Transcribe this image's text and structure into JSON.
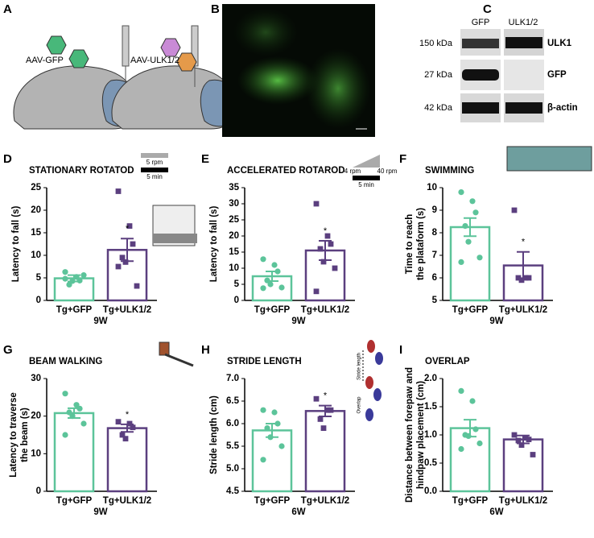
{
  "panel_a": {
    "label": "A",
    "vectors": [
      "AAV-GFP",
      "AAV-ULK1/2"
    ]
  },
  "panel_b": {
    "label": "B"
  },
  "panel_c": {
    "label": "C",
    "lanes": [
      "GFP",
      "ULK1/2"
    ],
    "rows": [
      {
        "weight": "150 kDa",
        "protein": "ULK1"
      },
      {
        "weight": "27 kDa",
        "protein": "GFP"
      },
      {
        "weight": "42 kDa",
        "protein": "β-actin"
      }
    ]
  },
  "chart_data": [
    {
      "type": "bar",
      "label": "D",
      "title": "STATIONARY ROTATOD",
      "inset_labels": [
        "5 rpm",
        "5 min"
      ],
      "categories": [
        "Tg+GFP",
        "Tg+ULK1/2"
      ],
      "colors": [
        "#5cc49a",
        "#5b3f7f"
      ],
      "values": [
        4.9,
        11.2
      ],
      "errors": [
        0.7,
        2.5
      ],
      "points": [
        [
          6.3,
          5.2,
          4.4,
          3.5,
          4.3,
          5.6,
          4.8
        ],
        [
          24.2,
          16.5,
          12.5,
          9.5,
          8.5,
          3.2,
          7.5
        ]
      ],
      "annotation": "*",
      "ylabel": [
        "Latency to fall (s)"
      ],
      "xlabel": "9W",
      "ylim": [
        0,
        25
      ],
      "yticks": [
        0,
        5,
        10,
        15,
        20,
        25
      ]
    },
    {
      "type": "bar",
      "label": "E",
      "title": "ACCELERATED ROTAROD",
      "inset_labels": [
        "4 rpm",
        "40 rpm",
        "5 min"
      ],
      "categories": [
        "Tg+GFP",
        "Tg+ULK1/2"
      ],
      "colors": [
        "#5cc49a",
        "#5b3f7f"
      ],
      "values": [
        7.5,
        15.5
      ],
      "errors": [
        1.5,
        3.0
      ],
      "points": [
        [
          12.8,
          11,
          9,
          6.2,
          5,
          4,
          3.8
        ],
        [
          30,
          20,
          17.5,
          16,
          12,
          10,
          2.8
        ]
      ],
      "annotation": "*",
      "ylabel": [
        "Latency to fall (s)"
      ],
      "xlabel": "9W",
      "ylim": [
        0,
        35
      ],
      "yticks": [
        0,
        5,
        10,
        15,
        20,
        25,
        30,
        35
      ]
    },
    {
      "type": "bar",
      "label": "F",
      "title": "SWIMMING",
      "categories": [
        "Tg+GFP",
        "Tg+ULK1/2"
      ],
      "colors": [
        "#5cc49a",
        "#5b3f7f"
      ],
      "values": [
        8.25,
        6.55
      ],
      "errors": [
        0.4,
        0.6
      ],
      "points": [
        [
          9.8,
          9.4,
          8.9,
          8.3,
          7.6,
          6.9,
          6.7
        ],
        [
          9.0,
          6.0,
          6.0,
          6.0,
          5.9
        ]
      ],
      "annotation": "*",
      "ylabel": [
        "Time to reach",
        "the plataform (s)"
      ],
      "xlabel": "9W",
      "ylim": [
        5,
        10
      ],
      "yticks": [
        5,
        6,
        7,
        8,
        9,
        10
      ]
    },
    {
      "type": "bar",
      "label": "G",
      "title": "BEAM WALKING",
      "categories": [
        "Tg+GFP",
        "Tg+ULK1/2"
      ],
      "colors": [
        "#5cc49a",
        "#5b3f7f"
      ],
      "values": [
        20.8,
        16.8
      ],
      "errors": [
        1.3,
        1.0
      ],
      "points": [
        [
          26,
          23,
          22,
          21,
          20,
          18,
          15
        ],
        [
          18.5,
          18,
          17,
          15,
          14
        ]
      ],
      "annotation": "*",
      "ylabel": [
        "Latency to traverse",
        "the beam (s)"
      ],
      "xlabel": "9W",
      "ylim": [
        0,
        30
      ],
      "yticks": [
        0,
        10,
        20,
        30
      ]
    },
    {
      "type": "bar",
      "label": "H",
      "title": "STRIDE LENGTH",
      "inset_labels": [
        "Stride length",
        "Overlap"
      ],
      "categories": [
        "Tg+GFP",
        "Tg+ULK1/2"
      ],
      "colors": [
        "#5cc49a",
        "#5b3f7f"
      ],
      "values": [
        5.85,
        6.28
      ],
      "errors": [
        0.15,
        0.12
      ],
      "points": [
        [
          6.3,
          6.25,
          6.0,
          5.9,
          5.7,
          5.5,
          5.2
        ],
        [
          6.55,
          6.3,
          6.3,
          6.1,
          5.9
        ]
      ],
      "annotation": "*",
      "ylabel": [
        "Stride length (cm)"
      ],
      "xlabel": "6W",
      "ylim": [
        4.5,
        7.0
      ],
      "yticks": [
        4.5,
        {
          "value": 5.0,
          "label": "5.0"
        },
        5.5,
        {
          "value": 6.0,
          "label": "6.0"
        },
        6.5,
        {
          "value": 7.0,
          "label": "7.0"
        }
      ]
    },
    {
      "type": "bar",
      "label": "I",
      "title": "OVERLAP",
      "categories": [
        "Tg+GFP",
        "Tg+ULK1/2"
      ],
      "colors": [
        "#5cc49a",
        "#5b3f7f"
      ],
      "values": [
        1.12,
        0.92
      ],
      "errors": [
        0.15,
        0.07
      ],
      "points": [
        [
          1.78,
          1.6,
          1.1,
          1.0,
          0.98,
          0.85,
          0.75
        ],
        [
          1.0,
          0.95,
          0.92,
          0.9,
          0.82,
          0.65
        ]
      ],
      "ylabel": [
        "Distance between forepaw and",
        "hindpaw placement (cm)"
      ],
      "xlabel": "6W",
      "ylim": [
        0,
        2.0
      ],
      "yticks": [
        {
          "value": 0,
          "label": "0.0"
        },
        0.5,
        {
          "value": 1.0,
          "label": "1.0"
        },
        1.5,
        {
          "value": 2.0,
          "label": "2.0"
        }
      ]
    }
  ]
}
